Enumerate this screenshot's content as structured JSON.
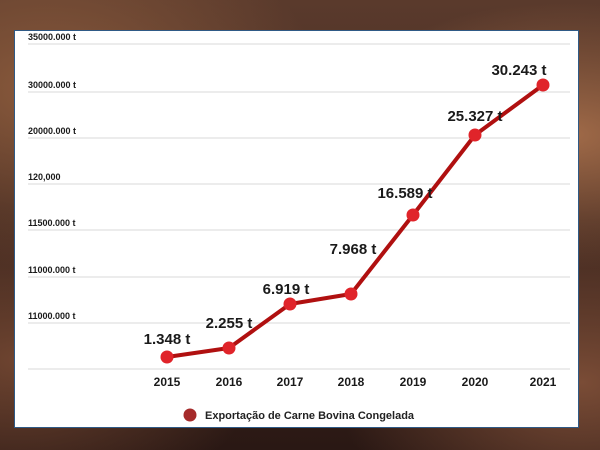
{
  "chart_data": {
    "type": "line",
    "x": [
      "2015",
      "2016",
      "2017",
      "2018",
      "2019",
      "2020",
      "2021"
    ],
    "series": [
      {
        "name": "Exportação de Carne Bovina Congelada",
        "values": [
          1348,
          2255,
          6919,
          7968,
          16589,
          25327,
          30243
        ],
        "data_labels": [
          "1.348 t",
          "2.255 t",
          "6.919 t",
          "7.968 t",
          "16.589 t",
          "25.327 t",
          "30.243 t"
        ]
      }
    ],
    "y_tick_labels": [
      "35000.000 t",
      "30000.000 t",
      "20000.000 t",
      "120,000",
      "11500.000 t",
      "11000.000 t",
      "11000.000 t"
    ],
    "ylabel": "",
    "xlabel": "",
    "grid": true,
    "legend_position": "bottom",
    "colors": {
      "line": "#b01010",
      "marker": "#e0242a",
      "legend_marker": "#a52a2a",
      "grid": "#d8d8d8",
      "border": "#2f5a86"
    }
  }
}
